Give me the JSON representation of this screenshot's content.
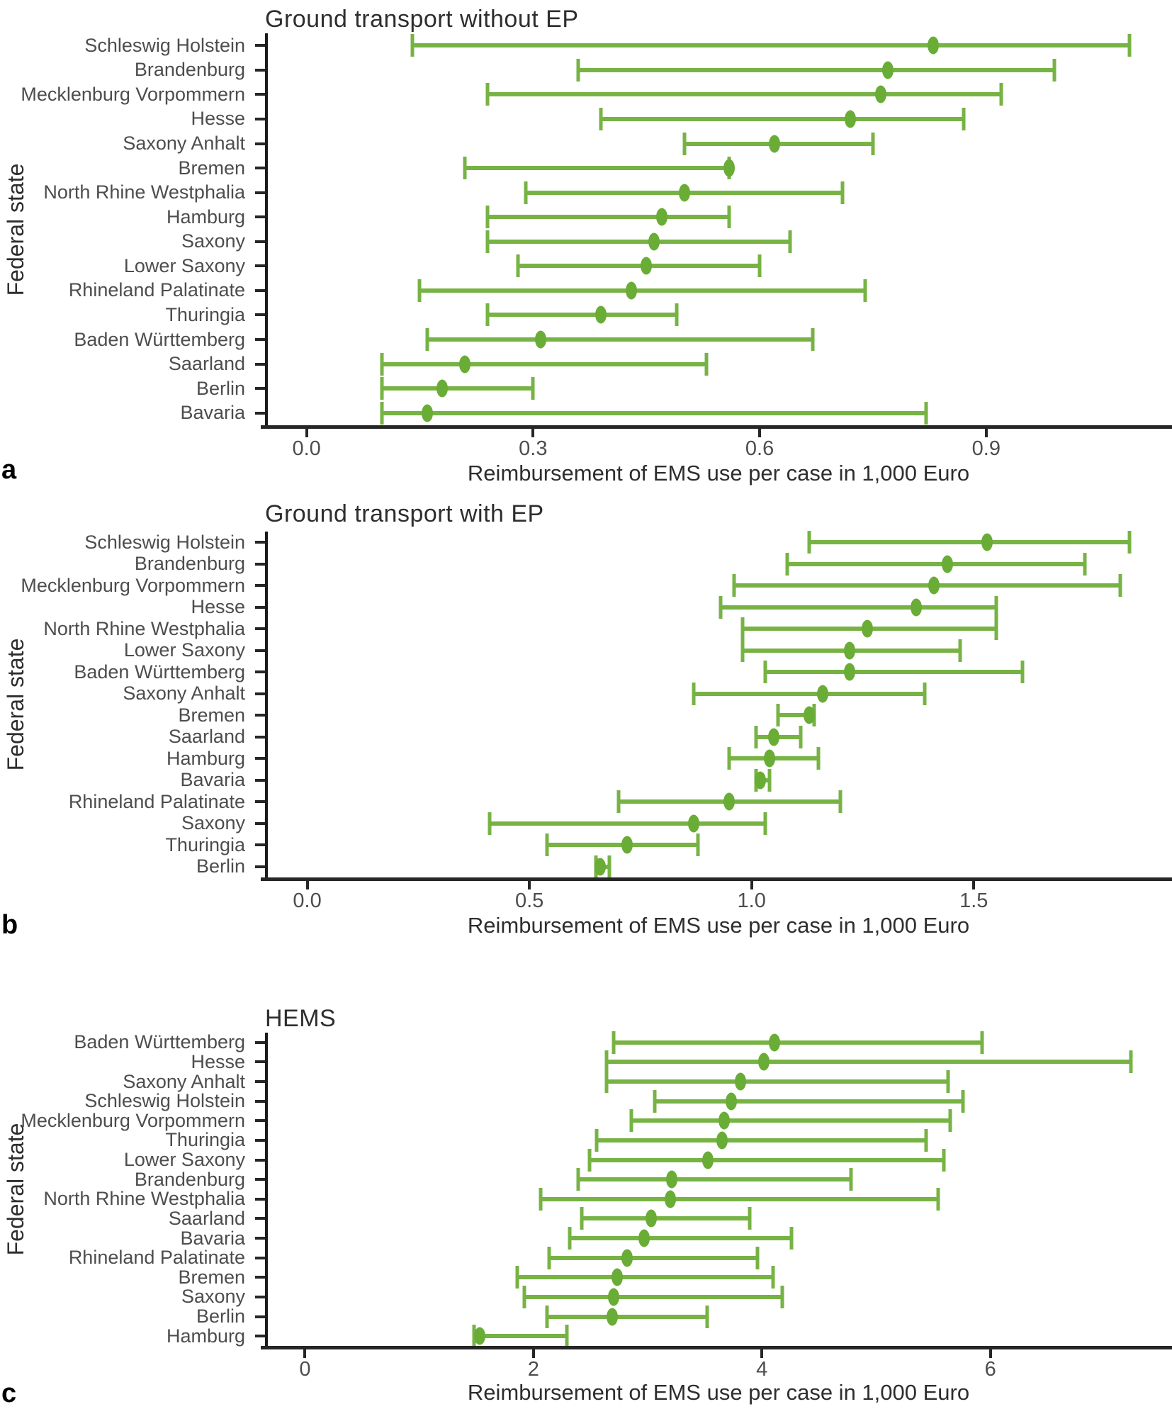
{
  "figure": {
    "background": "#ffffff",
    "shared_xlabel": "Reimbursement of EMS use per case in 1,000 Euro",
    "shared_ylabel": "Federal state"
  },
  "colors": {
    "interval_green": "#77B344",
    "point_green": "#69AC36",
    "axis_line": "#262626",
    "tick_text": "#4d4d4d",
    "state_text": "#4d4d4d",
    "title_text": "#2e2e2e"
  },
  "chart_data": [
    {
      "type": "scatter",
      "subtype": "dot_with_ci_interval",
      "panel_letter": "a",
      "title": "Ground transport without EP",
      "xlabel": "Reimbursement of EMS use per case in 1,000 Euro",
      "ylabel": "Federal state",
      "grid": false,
      "legend": false,
      "x_axis": {
        "min": -0.055,
        "max": 1.146,
        "ticks": [
          0.0,
          0.3,
          0.6,
          0.9
        ],
        "tick_labels": [
          "0.0",
          "0.3",
          "0.6",
          "0.9"
        ]
      },
      "series": [
        {
          "state": "Schleswig Holstein",
          "estimate": 0.83,
          "ci_low": 0.14,
          "ci_high": 1.09
        },
        {
          "state": "Brandenburg",
          "estimate": 0.77,
          "ci_low": 0.36,
          "ci_high": 0.99
        },
        {
          "state": "Mecklenburg Vorpommern",
          "estimate": 0.76,
          "ci_low": 0.24,
          "ci_high": 0.92
        },
        {
          "state": "Hesse",
          "estimate": 0.72,
          "ci_low": 0.39,
          "ci_high": 0.87
        },
        {
          "state": "Saxony Anhalt",
          "estimate": 0.62,
          "ci_low": 0.5,
          "ci_high": 0.75
        },
        {
          "state": "Bremen",
          "estimate": 0.56,
          "ci_low": 0.21,
          "ci_high": 0.56
        },
        {
          "state": "North Rhine Westphalia",
          "estimate": 0.5,
          "ci_low": 0.29,
          "ci_high": 0.71
        },
        {
          "state": "Hamburg",
          "estimate": 0.47,
          "ci_low": 0.24,
          "ci_high": 0.56
        },
        {
          "state": "Saxony",
          "estimate": 0.46,
          "ci_low": 0.24,
          "ci_high": 0.64
        },
        {
          "state": "Lower Saxony",
          "estimate": 0.45,
          "ci_low": 0.28,
          "ci_high": 0.6
        },
        {
          "state": "Rhineland Palatinate",
          "estimate": 0.43,
          "ci_low": 0.15,
          "ci_high": 0.74
        },
        {
          "state": "Thuringia",
          "estimate": 0.39,
          "ci_low": 0.24,
          "ci_high": 0.49
        },
        {
          "state": "Baden Württemberg",
          "estimate": 0.31,
          "ci_low": 0.16,
          "ci_high": 0.67
        },
        {
          "state": "Saarland",
          "estimate": 0.21,
          "ci_low": 0.1,
          "ci_high": 0.53
        },
        {
          "state": "Berlin",
          "estimate": 0.18,
          "ci_low": 0.1,
          "ci_high": 0.3
        },
        {
          "state": "Bavaria",
          "estimate": 0.16,
          "ci_low": 0.1,
          "ci_high": 0.82
        }
      ]
    },
    {
      "type": "scatter",
      "subtype": "dot_with_ci_interval",
      "panel_letter": "b",
      "title": "Ground transport with EP",
      "xlabel": "Reimbursement of EMS use per case in 1,000 Euro",
      "ylabel": "Federal state",
      "grid": false,
      "legend": false,
      "x_axis": {
        "min": -0.095,
        "max": 1.946,
        "ticks": [
          0.0,
          0.5,
          1.0,
          1.5
        ],
        "tick_labels": [
          "0.0",
          "0.5",
          "1.0",
          "1.5"
        ]
      },
      "series": [
        {
          "state": "Schleswig Holstein",
          "estimate": 1.53,
          "ci_low": 1.13,
          "ci_high": 1.85
        },
        {
          "state": "Brandenburg",
          "estimate": 1.44,
          "ci_low": 1.08,
          "ci_high": 1.75
        },
        {
          "state": "Mecklenburg Vorpommern",
          "estimate": 1.41,
          "ci_low": 0.96,
          "ci_high": 1.83
        },
        {
          "state": "Hesse",
          "estimate": 1.37,
          "ci_low": 0.93,
          "ci_high": 1.55
        },
        {
          "state": "North Rhine Westphalia",
          "estimate": 1.26,
          "ci_low": 0.98,
          "ci_high": 1.55
        },
        {
          "state": "Lower Saxony",
          "estimate": 1.22,
          "ci_low": 0.98,
          "ci_high": 1.47
        },
        {
          "state": "Baden Württemberg",
          "estimate": 1.22,
          "ci_low": 1.03,
          "ci_high": 1.61
        },
        {
          "state": "Saxony Anhalt",
          "estimate": 1.16,
          "ci_low": 0.87,
          "ci_high": 1.39
        },
        {
          "state": "Bremen",
          "estimate": 1.13,
          "ci_low": 1.06,
          "ci_high": 1.14
        },
        {
          "state": "Saarland",
          "estimate": 1.05,
          "ci_low": 1.01,
          "ci_high": 1.11
        },
        {
          "state": "Hamburg",
          "estimate": 1.04,
          "ci_low": 0.95,
          "ci_high": 1.15
        },
        {
          "state": "Bavaria",
          "estimate": 1.02,
          "ci_low": 1.01,
          "ci_high": 1.04
        },
        {
          "state": "Rhineland Palatinate",
          "estimate": 0.95,
          "ci_low": 0.7,
          "ci_high": 1.2
        },
        {
          "state": "Saxony",
          "estimate": 0.87,
          "ci_low": 0.41,
          "ci_high": 1.03
        },
        {
          "state": "Thuringia",
          "estimate": 0.72,
          "ci_low": 0.54,
          "ci_high": 0.88
        },
        {
          "state": "Berlin",
          "estimate": 0.66,
          "ci_low": 0.65,
          "ci_high": 0.68
        }
      ]
    },
    {
      "type": "scatter",
      "subtype": "dot_with_ci_interval",
      "panel_letter": "c",
      "title": "HEMS",
      "xlabel": "Reimbursement of EMS use per case in 1,000 Euro",
      "ylabel": "Federal state",
      "grid": false,
      "legend": false,
      "x_axis": {
        "min": -0.35,
        "max": 7.59,
        "ticks": [
          0,
          2,
          4,
          6
        ],
        "tick_labels": [
          "0",
          "2",
          "4",
          "6"
        ]
      },
      "series": [
        {
          "state": "Baden Württemberg",
          "estimate": 4.11,
          "ci_low": 2.7,
          "ci_high": 5.93
        },
        {
          "state": "Hesse",
          "estimate": 4.02,
          "ci_low": 2.64,
          "ci_high": 7.23
        },
        {
          "state": "Saxony Anhalt",
          "estimate": 3.81,
          "ci_low": 2.64,
          "ci_high": 5.63
        },
        {
          "state": "Schleswig Holstein",
          "estimate": 3.73,
          "ci_low": 3.06,
          "ci_high": 5.76
        },
        {
          "state": "Mecklenburg Vorpommern",
          "estimate": 3.67,
          "ci_low": 2.86,
          "ci_high": 5.65
        },
        {
          "state": "Thuringia",
          "estimate": 3.65,
          "ci_low": 2.55,
          "ci_high": 5.44
        },
        {
          "state": "Lower Saxony",
          "estimate": 3.53,
          "ci_low": 2.49,
          "ci_high": 5.59
        },
        {
          "state": "Brandenburg",
          "estimate": 3.21,
          "ci_low": 2.39,
          "ci_high": 4.78
        },
        {
          "state": "North Rhine Westphalia",
          "estimate": 3.2,
          "ci_low": 2.06,
          "ci_high": 5.54
        },
        {
          "state": "Saarland",
          "estimate": 3.03,
          "ci_low": 2.42,
          "ci_high": 3.89
        },
        {
          "state": "Bavaria",
          "estimate": 2.97,
          "ci_low": 2.32,
          "ci_high": 4.26
        },
        {
          "state": "Rhineland Palatinate",
          "estimate": 2.82,
          "ci_low": 2.14,
          "ci_high": 3.96
        },
        {
          "state": "Bremen",
          "estimate": 2.73,
          "ci_low": 1.86,
          "ci_high": 4.1
        },
        {
          "state": "Saxony",
          "estimate": 2.7,
          "ci_low": 1.92,
          "ci_high": 4.18
        },
        {
          "state": "Berlin",
          "estimate": 2.69,
          "ci_low": 2.12,
          "ci_high": 3.52
        },
        {
          "state": "Hamburg",
          "estimate": 1.53,
          "ci_low": 1.48,
          "ci_high": 2.29
        }
      ]
    }
  ]
}
